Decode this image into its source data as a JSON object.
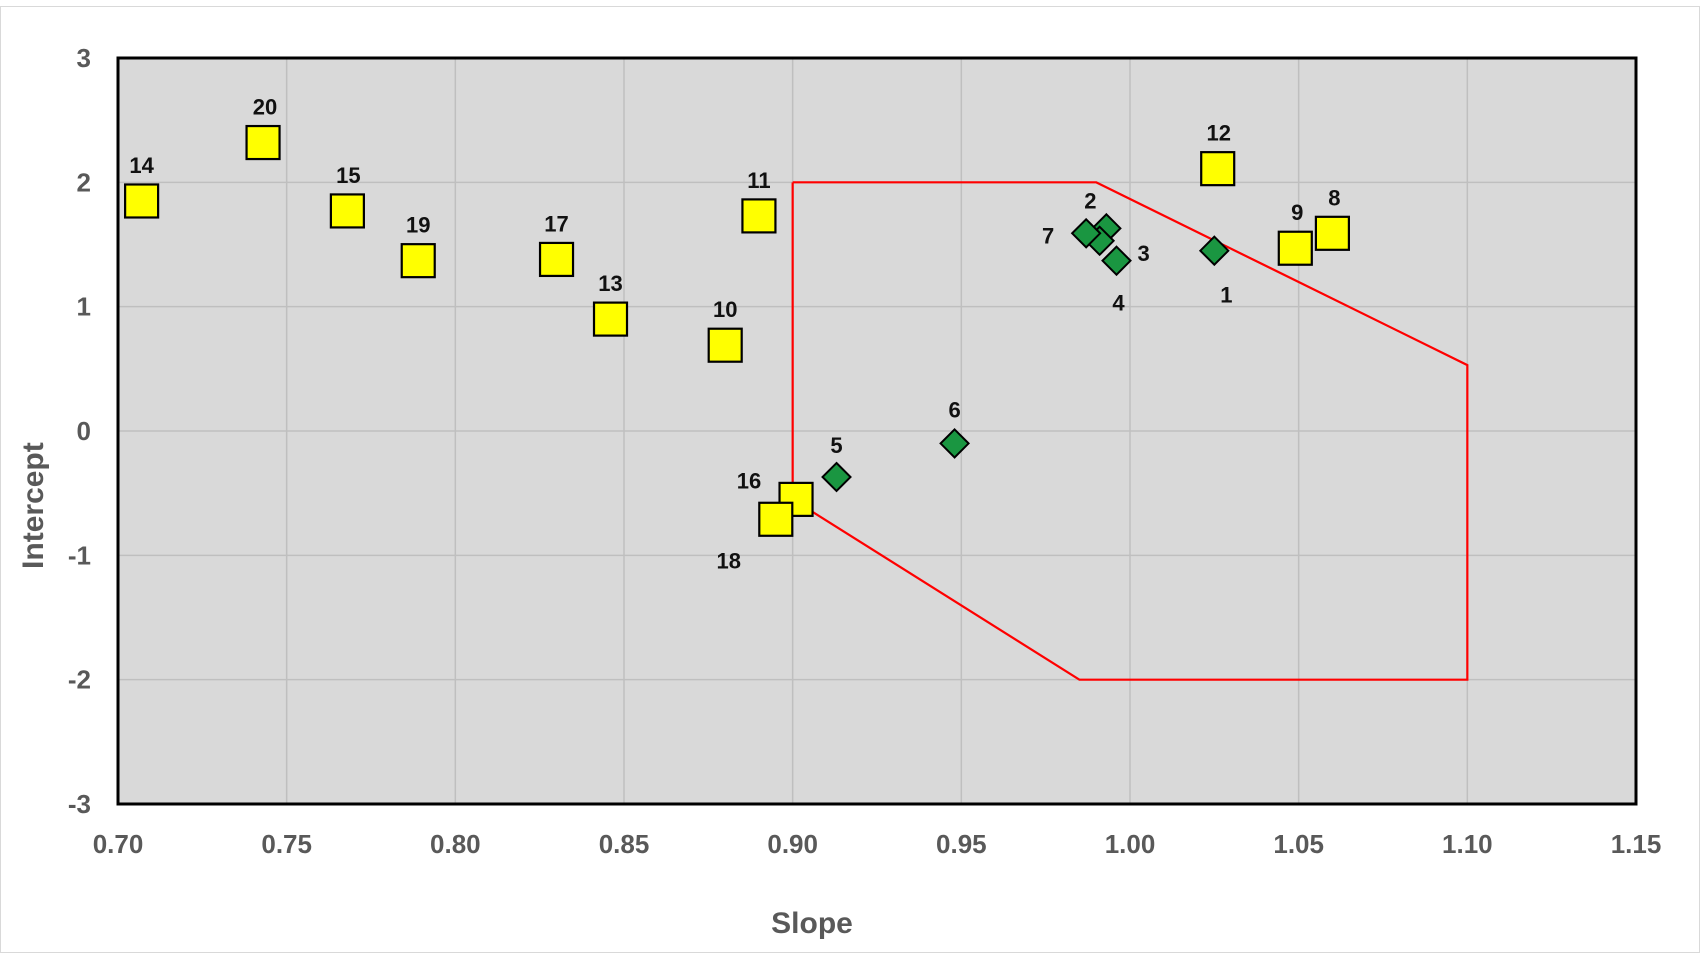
{
  "colors": {
    "plot_background": "#d9d9d9",
    "gridline": "#bfbfbf",
    "border": "#000000",
    "region_line": "#ff0000",
    "square_fill": "#ffff00",
    "diamond_fill": "#1a9641"
  },
  "chart_data": {
    "type": "scatter",
    "title": "",
    "xlabel": "Slope",
    "ylabel": "Intercept",
    "xlim": [
      0.7,
      1.15
    ],
    "ylim": [
      -3,
      3
    ],
    "grid": true,
    "legend": "none",
    "x_ticks": [
      "0.70",
      "0.75",
      "0.80",
      "0.85",
      "0.90",
      "0.95",
      "1.00",
      "1.05",
      "1.10",
      "1.15"
    ],
    "y_ticks": [
      "3",
      "2",
      "1",
      "0",
      "-1",
      "-2",
      "-3"
    ],
    "series": [
      {
        "marker": "square",
        "points": [
          {
            "label": "8",
            "x": 1.06,
            "y": 1.59
          },
          {
            "label": "9",
            "x": 1.049,
            "y": 1.47
          },
          {
            "label": "10",
            "x": 0.88,
            "y": 0.69
          },
          {
            "label": "11",
            "x": 0.89,
            "y": 1.73
          },
          {
            "label": "12",
            "x": 1.026,
            "y": 2.11
          },
          {
            "label": "13",
            "x": 0.846,
            "y": 0.9
          },
          {
            "label": "14",
            "x": 0.707,
            "y": 1.85
          },
          {
            "label": "15",
            "x": 0.768,
            "y": 1.77
          },
          {
            "label": "16",
            "x": 0.901,
            "y": -0.55
          },
          {
            "label": "17",
            "x": 0.83,
            "y": 1.38
          },
          {
            "label": "18",
            "x": 0.895,
            "y": -0.71
          },
          {
            "label": "19",
            "x": 0.789,
            "y": 1.37
          },
          {
            "label": "20",
            "x": 0.743,
            "y": 2.32
          }
        ]
      },
      {
        "marker": "diamond",
        "points": [
          {
            "label": "1",
            "x": 1.025,
            "y": 1.45
          },
          {
            "label": "2",
            "x": 0.993,
            "y": 1.63
          },
          {
            "label": "3",
            "x": 0.991,
            "y": 1.53
          },
          {
            "label": "4",
            "x": 0.996,
            "y": 1.37
          },
          {
            "label": "5",
            "x": 0.913,
            "y": -0.37
          },
          {
            "label": "6",
            "x": 0.948,
            "y": -0.1
          },
          {
            "label": "7",
            "x": 0.987,
            "y": 1.59
          }
        ]
      }
    ],
    "region": {
      "points": [
        [
          0.9,
          2.0
        ],
        [
          0.99,
          2.0
        ],
        [
          1.1,
          0.53
        ],
        [
          1.1,
          -2.0
        ],
        [
          0.985,
          -2.0
        ],
        [
          0.9,
          -0.55
        ],
        [
          0.9,
          2.0
        ]
      ]
    }
  }
}
